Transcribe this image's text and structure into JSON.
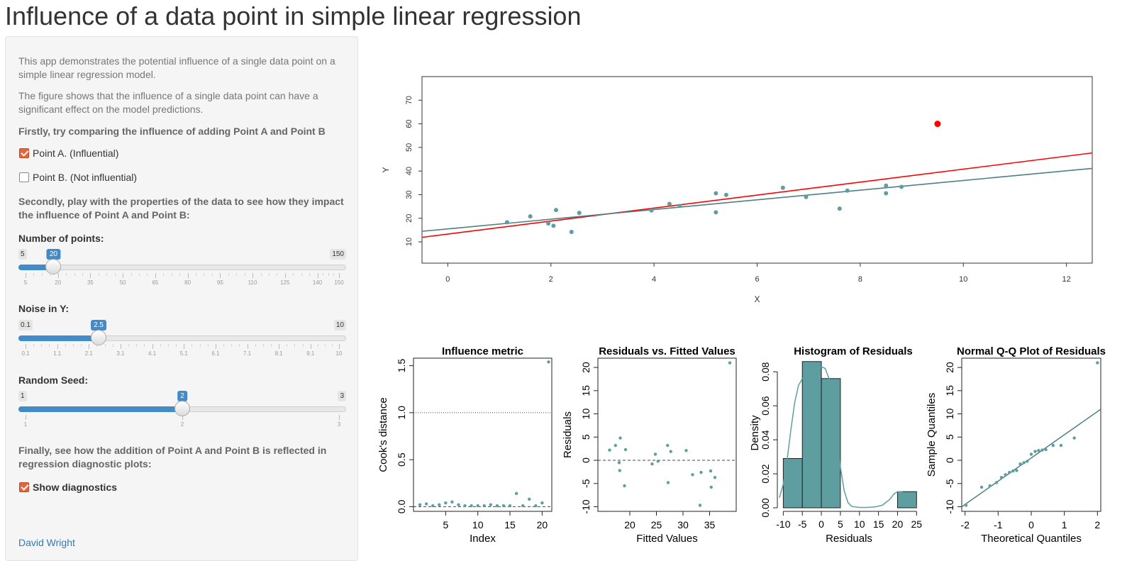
{
  "app": {
    "title": "Influence of a data point in simple linear regression"
  },
  "sidebar": {
    "intro1": "This app demonstrates the potential influence of a single data point on a simple linear regression model.",
    "intro2": "The figure shows that the influence of a single data point can have a significant effect on the model predictions.",
    "step1": "Firstly, try comparing the influence of adding Point A and Point B",
    "point_a": {
      "label": "Point A. (Influential)",
      "checked": true
    },
    "point_b": {
      "label": "Point B. (Not influential)",
      "checked": false
    },
    "step2": "Secondly, play with the properties of the data to see how they impact the influence of Point A and Point B:",
    "sliders": [
      {
        "label": "Number of points:",
        "min_label": "5",
        "max_label": "150",
        "value_label": "20",
        "min": 5,
        "max": 150,
        "value": 20,
        "ticks": [
          "5",
          "20",
          "35",
          "50",
          "65",
          "80",
          "95",
          "110",
          "125",
          "140",
          "150"
        ],
        "tick_values": [
          5,
          20,
          35,
          50,
          65,
          80,
          95,
          110,
          125,
          140,
          150
        ],
        "minor_per_major": 3
      },
      {
        "label": "Noise in Y:",
        "min_label": "0.1",
        "max_label": "10",
        "value_label": "2.5",
        "min": 0.1,
        "max": 10,
        "value": 2.5,
        "ticks": [
          "0.1",
          "1.1",
          "2.1",
          "3.1",
          "4.1",
          "5.1",
          "6.1",
          "7.1",
          "8.1",
          "9.1",
          "10"
        ],
        "tick_values": [
          0.1,
          1.1,
          2.1,
          3.1,
          4.1,
          5.1,
          6.1,
          7.1,
          8.1,
          9.1,
          10
        ],
        "minor_per_major": 3
      },
      {
        "label": "Random Seed:",
        "min_label": "1",
        "max_label": "3",
        "value_label": "2",
        "min": 1,
        "max": 3,
        "value": 2,
        "ticks": [
          "1",
          "2",
          "3"
        ],
        "tick_values": [
          1,
          2,
          3
        ],
        "minor_per_major": 0
      }
    ],
    "step3": "Finally, see how the addition of Point A and Point B is reflected in regression diagnostic plots:",
    "show_diag": {
      "label": "Show diagnostics",
      "checked": true
    },
    "author": "David Wright"
  },
  "colors": {
    "teal": "#5f9ea0",
    "red": "#ff0000",
    "fit_teal": "#4f7f86",
    "bar_fill": "#5f9ea0"
  },
  "chart_data": [
    {
      "type": "scatter",
      "title": "",
      "xlabel": "X",
      "ylabel": "Y",
      "xlim": [
        -0.5,
        12.5
      ],
      "ylim": [
        1,
        80
      ],
      "xticks": [
        0,
        2,
        4,
        6,
        8,
        10,
        12
      ],
      "yticks": [
        10,
        20,
        30,
        40,
        50,
        60,
        70
      ],
      "points": [
        [
          1.15,
          18.3
        ],
        [
          1.6,
          20.8
        ],
        [
          1.95,
          17.8
        ],
        [
          2.05,
          16.8
        ],
        [
          2.1,
          23.5
        ],
        [
          2.4,
          14.2
        ],
        [
          2.55,
          22.3
        ],
        [
          3.95,
          23.3
        ],
        [
          4.3,
          26.1
        ],
        [
          4.5,
          25.2
        ],
        [
          5.2,
          30.6
        ],
        [
          5.2,
          22.5
        ],
        [
          5.4,
          29.9
        ],
        [
          6.5,
          32.9
        ],
        [
          6.95,
          29.0
        ],
        [
          7.6,
          24.1
        ],
        [
          7.75,
          31.7
        ],
        [
          8.5,
          33.8
        ],
        [
          8.5,
          30.6
        ],
        [
          8.8,
          33.3
        ]
      ],
      "added_point": [
        9.5,
        60
      ],
      "fit_without": {
        "intercept": 15.5,
        "slope": 2.05
      },
      "fit_with": {
        "intercept": 13.3,
        "slope": 2.75
      }
    },
    {
      "type": "scatter",
      "title": "Influence metric",
      "xlabel": "Index",
      "ylabel": "Cook's distance",
      "xlim": [
        0,
        21.5
      ],
      "ylim": [
        -0.05,
        1.58
      ],
      "xticks": [
        5,
        10,
        15,
        20
      ],
      "yticks": [
        0.0,
        0.5,
        1.0,
        1.5
      ],
      "ytick_labels": [
        "0.0",
        "0.5",
        "1.0",
        "1.5"
      ],
      "hline_dotted": 1.0,
      "hline_dashed": 0.0,
      "values": [
        0.02,
        0.03,
        0.01,
        0.02,
        0.04,
        0.05,
        0.02,
        0.01,
        0.01,
        0.01,
        0.01,
        0.02,
        0.01,
        0.01,
        0.01,
        0.14,
        0.01,
        0.08,
        0.01,
        0.04,
        1.54
      ]
    },
    {
      "type": "scatter",
      "title": "Residuals vs. Fitted Values",
      "xlabel": "Fitted Values",
      "ylabel": "Residuals",
      "xlim": [
        14,
        40
      ],
      "ylim": [
        -11,
        22
      ],
      "xticks": [
        20,
        25,
        30,
        35
      ],
      "yticks": [
        -10,
        -5,
        0,
        5,
        10,
        15,
        20
      ],
      "hline_dashed": 0,
      "points": [
        [
          16.2,
          2.2
        ],
        [
          17.3,
          3.2
        ],
        [
          18.0,
          -0.5
        ],
        [
          18.1,
          -2.2
        ],
        [
          18.2,
          4.8
        ],
        [
          19.0,
          -5.5
        ],
        [
          19.2,
          2.3
        ],
        [
          24.2,
          -0.8
        ],
        [
          24.8,
          1.3
        ],
        [
          25.3,
          -0.2
        ],
        [
          27.1,
          3.2
        ],
        [
          27.2,
          -4.8
        ],
        [
          27.7,
          1.9
        ],
        [
          30.6,
          2.1
        ],
        [
          31.8,
          -3.1
        ],
        [
          33.2,
          -9.7
        ],
        [
          33.4,
          -2.6
        ],
        [
          35.2,
          -2.3
        ],
        [
          35.3,
          -5.8
        ],
        [
          36.0,
          -3.7
        ],
        [
          38.8,
          21.0
        ]
      ]
    },
    {
      "type": "histogram",
      "title": "Histogram of Residuals",
      "xlabel": "Residuals",
      "ylabel": "Density",
      "xlim": [
        -11,
        25.5
      ],
      "ylim": [
        0,
        0.088
      ],
      "xticks": [
        -10,
        -5,
        0,
        5,
        10,
        15,
        20,
        25
      ],
      "yticks": [
        0,
        0.02,
        0.04,
        0.06,
        0.08
      ],
      "ytick_labels": [
        "0.00",
        "0.02",
        "0.04",
        "0.06",
        "0.08"
      ],
      "bins": [
        [
          -10,
          -5,
          0.029
        ],
        [
          -5,
          0,
          0.086
        ],
        [
          0,
          5,
          0.076
        ],
        [
          5,
          10,
          0
        ],
        [
          10,
          15,
          0
        ],
        [
          15,
          20,
          0
        ],
        [
          20,
          25,
          0.0095
        ]
      ],
      "density_curve": [
        [
          -11,
          0.006
        ],
        [
          -10,
          0.014
        ],
        [
          -9,
          0.028
        ],
        [
          -8,
          0.046
        ],
        [
          -7,
          0.062
        ],
        [
          -6,
          0.072
        ],
        [
          -5,
          0.076
        ],
        [
          -4,
          0.077
        ],
        [
          -3,
          0.078
        ],
        [
          -2,
          0.08
        ],
        [
          -1,
          0.082
        ],
        [
          0,
          0.083
        ],
        [
          1,
          0.082
        ],
        [
          2,
          0.076
        ],
        [
          3,
          0.062
        ],
        [
          4,
          0.043
        ],
        [
          5,
          0.024
        ],
        [
          6,
          0.01
        ],
        [
          7,
          0.003
        ],
        [
          8,
          0.0008
        ],
        [
          10,
          0.0002
        ],
        [
          12,
          0.0002
        ],
        [
          14,
          0.0005
        ],
        [
          16,
          0.0015
        ],
        [
          18,
          0.005
        ],
        [
          19,
          0.008
        ],
        [
          20,
          0.0095
        ],
        [
          21,
          0.0095
        ],
        [
          22,
          0.008
        ],
        [
          23,
          0.005
        ],
        [
          24,
          0.002
        ],
        [
          25,
          0.001
        ]
      ]
    },
    {
      "type": "scatter",
      "title": "Normal Q-Q Plot of Residuals",
      "xlabel": "Theoretical Quantiles",
      "ylabel": "Sample Quantiles",
      "xlim": [
        -2.1,
        2.1
      ],
      "ylim": [
        -11,
        22
      ],
      "xticks": [
        -2,
        -1,
        0,
        1,
        2
      ],
      "yticks": [
        -10,
        -5,
        0,
        5,
        10,
        15,
        20
      ],
      "points": [
        [
          -1.97,
          -9.7
        ],
        [
          -1.5,
          -5.8
        ],
        [
          -1.25,
          -5.5
        ],
        [
          -1.05,
          -4.8
        ],
        [
          -0.9,
          -3.7
        ],
        [
          -0.78,
          -3.1
        ],
        [
          -0.66,
          -2.6
        ],
        [
          -0.55,
          -2.3
        ],
        [
          -0.44,
          -2.2
        ],
        [
          -0.33,
          -0.8
        ],
        [
          -0.22,
          -0.5
        ],
        [
          -0.12,
          -0.2
        ],
        [
          0.0,
          1.3
        ],
        [
          0.12,
          1.9
        ],
        [
          0.22,
          2.1
        ],
        [
          0.33,
          2.2
        ],
        [
          0.44,
          2.3
        ],
        [
          0.66,
          3.2
        ],
        [
          0.9,
          3.2
        ],
        [
          1.3,
          4.8
        ],
        [
          2.0,
          21.0
        ]
      ],
      "line": {
        "intercept": 0.5,
        "slope": 5.0
      }
    }
  ]
}
